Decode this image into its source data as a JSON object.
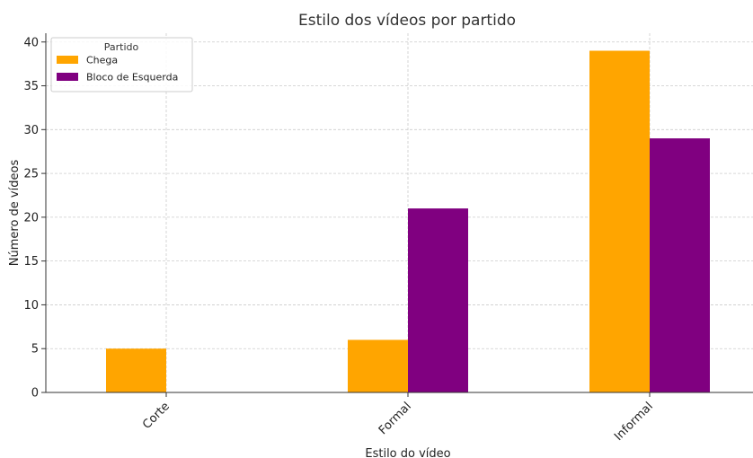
{
  "chart_data": {
    "type": "bar",
    "title": "Estilo dos vídeos por partido",
    "xlabel": "Estilo do vídeo",
    "ylabel": "Número de vídeos",
    "categories": [
      "Corte",
      "Formal",
      "Informal"
    ],
    "series": [
      {
        "name": "Chega",
        "values": [
          5,
          6,
          39
        ],
        "color": "#FFA500"
      },
      {
        "name": "Bloco de Esquerda",
        "values": [
          0,
          21,
          29
        ],
        "color": "#800080"
      }
    ],
    "ylim": [
      0,
      41
    ],
    "yticks": [
      0,
      5,
      10,
      15,
      20,
      25,
      30,
      35,
      40
    ],
    "legend": {
      "title": "Partido",
      "position": "top-left"
    },
    "grid": true
  }
}
